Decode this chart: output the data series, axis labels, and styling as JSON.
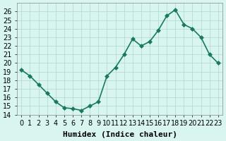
{
  "x": [
    0,
    1,
    2,
    3,
    4,
    5,
    6,
    7,
    8,
    9,
    10,
    11,
    12,
    13,
    14,
    15,
    16,
    17,
    18,
    19,
    20,
    21,
    22,
    23
  ],
  "y": [
    19.2,
    18.5,
    17.5,
    16.5,
    15.5,
    14.8,
    14.7,
    14.5,
    15.0,
    15.5,
    18.5,
    19.5,
    21.0,
    22.8,
    22.0,
    22.5,
    23.8,
    25.5,
    26.2,
    24.5,
    24.0,
    23.0,
    21.0,
    20.0
  ],
  "line_color": "#1a7a60",
  "marker_color": "#1a7a60",
  "bg_color": "#d8f5f0",
  "grid_color": "#b0d8d0",
  "xlabel": "Humidex (Indice chaleur)",
  "ylabel": "",
  "xlim": [
    -0.5,
    23.5
  ],
  "ylim": [
    14,
    27
  ],
  "yticks": [
    14,
    15,
    16,
    17,
    18,
    19,
    20,
    21,
    22,
    23,
    24,
    25,
    26
  ],
  "xtick_labels": [
    "0",
    "1",
    "2",
    "3",
    "4",
    "5",
    "6",
    "7",
    "8",
    "9",
    "10",
    "11",
    "12",
    "13",
    "14",
    "15",
    "16",
    "17",
    "18",
    "19",
    "20",
    "21",
    "22",
    "23"
  ],
  "title_fontsize": 9,
  "xlabel_fontsize": 8,
  "tick_fontsize": 7,
  "marker_size": 3,
  "line_width": 1.2
}
